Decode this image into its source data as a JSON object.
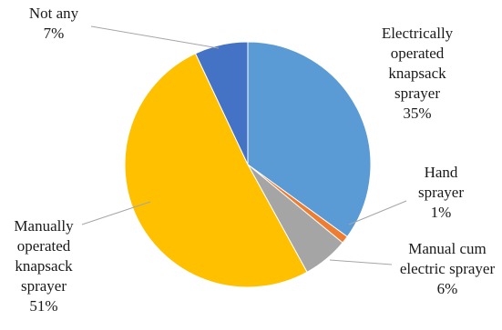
{
  "chart_data": {
    "type": "pie",
    "title": "",
    "start_angle_deg": 0,
    "direction": "clockwise",
    "slices": [
      {
        "label_lines": [
          "Electrically",
          "operated",
          "knapsack",
          "sprayer"
        ],
        "value_label": "35%",
        "value": 35,
        "color": "#5b9bd5"
      },
      {
        "label_lines": [
          "Hand",
          "sprayer"
        ],
        "value_label": "1%",
        "value": 1,
        "color": "#ed7d31"
      },
      {
        "label_lines": [
          "Manual cum",
          "electric sprayer"
        ],
        "value_label": "6%",
        "value": 6,
        "color": "#a5a5a5"
      },
      {
        "label_lines": [
          "Manually",
          "operated",
          "knapsack",
          "sprayer"
        ],
        "value_label": "51%",
        "value": 51,
        "color": "#ffc000"
      },
      {
        "label_lines": [
          "Not any"
        ],
        "value_label": "7%",
        "value": 7,
        "color": "#4472c4"
      }
    ],
    "leader_line_color": "#a6a6a6"
  }
}
